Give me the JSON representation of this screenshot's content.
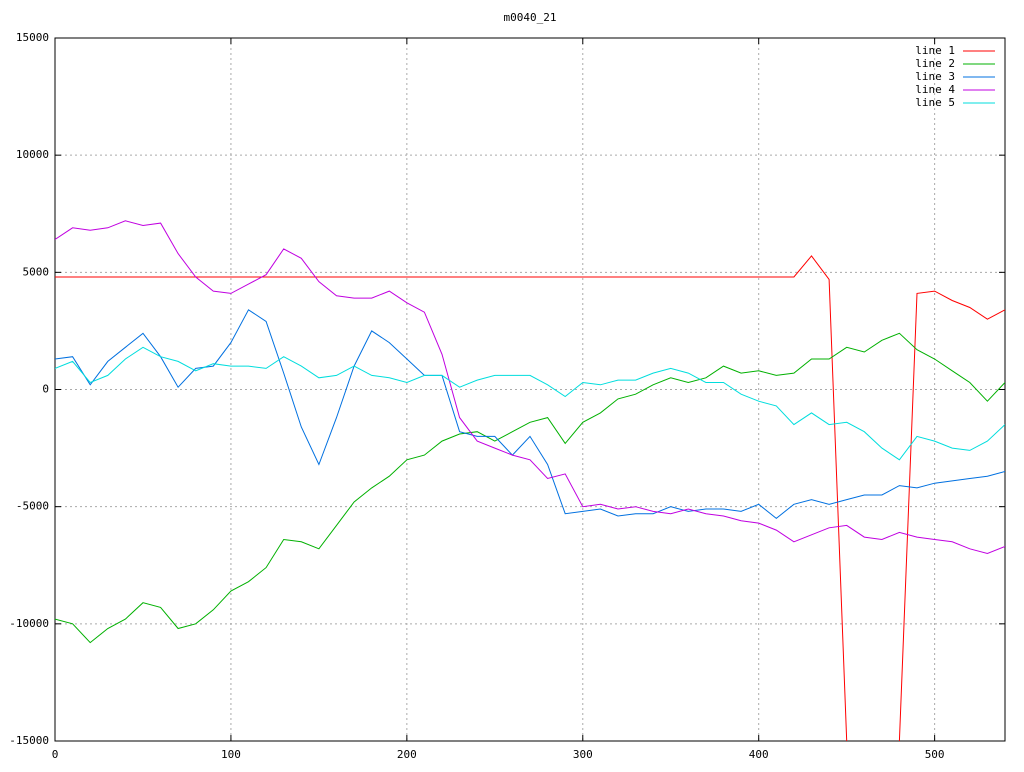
{
  "chart_data": {
    "type": "line",
    "title": "m0040_21",
    "x": [
      0,
      10,
      20,
      30,
      40,
      50,
      60,
      70,
      80,
      90,
      100,
      110,
      120,
      130,
      140,
      150,
      160,
      170,
      180,
      190,
      200,
      210,
      220,
      230,
      240,
      250,
      260,
      270,
      280,
      290,
      300,
      310,
      320,
      330,
      340,
      350,
      360,
      370,
      380,
      390,
      400,
      410,
      420,
      430,
      440,
      450,
      460,
      470,
      480,
      490,
      500,
      510,
      520,
      530,
      540
    ],
    "xlim": [
      0,
      540
    ],
    "xticks": [
      0,
      100,
      200,
      300,
      400,
      500
    ],
    "ylim": [
      -15000,
      15000
    ],
    "yticks": [
      -15000,
      -10000,
      -5000,
      0,
      5000,
      10000,
      15000
    ],
    "grid": true,
    "legend": "top-right",
    "series": [
      {
        "name": "line 1",
        "color": "#ff0000",
        "values": [
          4800,
          4800,
          4800,
          4800,
          4800,
          4800,
          4800,
          4800,
          4800,
          4800,
          4800,
          4800,
          4800,
          4800,
          4800,
          4800,
          4800,
          4800,
          4800,
          4800,
          4800,
          4800,
          4800,
          4800,
          4800,
          4800,
          4800,
          4800,
          4800,
          4800,
          4800,
          4800,
          4800,
          4800,
          4800,
          4800,
          4800,
          4800,
          4800,
          4800,
          4800,
          4800,
          4800,
          5700,
          4700,
          -15000,
          null,
          null,
          -15000,
          4100,
          4200,
          3800,
          3500,
          3000,
          3400
        ]
      },
      {
        "name": "line 2",
        "color": "#00b000",
        "values": [
          -9800,
          -10000,
          -10800,
          -10200,
          -9800,
          -9100,
          -9300,
          -10200,
          -10000,
          -9400,
          -8600,
          -8200,
          -7600,
          -6400,
          -6500,
          -6800,
          -5800,
          -4800,
          -4200,
          -3700,
          -3000,
          -2800,
          -2200,
          -1900,
          -1800,
          -2200,
          -1800,
          -1400,
          -1200,
          -2300,
          -1400,
          -1000,
          -400,
          -200,
          200,
          500,
          300,
          500,
          1000,
          700,
          800,
          600,
          700,
          1300,
          1300,
          1800,
          1600,
          2100,
          2400,
          1700,
          1300,
          800,
          300,
          -500,
          300
        ]
      },
      {
        "name": "line 3",
        "color": "#0070e0",
        "values": [
          1300,
          1400,
          200,
          1200,
          1800,
          2400,
          1400,
          100,
          900,
          1000,
          2000,
          3400,
          2900,
          700,
          -1600,
          -3200,
          -1200,
          1000,
          2500,
          2000,
          1300,
          600,
          600,
          -1800,
          -2000,
          -2000,
          -2800,
          -2000,
          -3200,
          -5300,
          -5200,
          -5100,
          -5400,
          -5300,
          -5300,
          -5000,
          -5200,
          -5100,
          -5100,
          -5200,
          -4900,
          -5500,
          -4900,
          -4700,
          -4900,
          -4700,
          -4500,
          -4500,
          -4100,
          -4200,
          -4000,
          -3900,
          -3800,
          -3700,
          -3500
        ]
      },
      {
        "name": "line 4",
        "color": "#c000e0",
        "values": [
          6400,
          6900,
          6800,
          6900,
          7200,
          7000,
          7100,
          5800,
          4800,
          4200,
          4100,
          4500,
          4900,
          6000,
          5600,
          4600,
          4000,
          3900,
          3900,
          4200,
          3700,
          3300,
          1500,
          -1200,
          -2200,
          -2500,
          -2800,
          -3000,
          -3800,
          -3600,
          -5000,
          -4900,
          -5100,
          -5000,
          -5200,
          -5300,
          -5100,
          -5300,
          -5400,
          -5600,
          -5700,
          -6000,
          -6500,
          -6200,
          -5900,
          -5800,
          -6300,
          -6400,
          -6100,
          -6300,
          -6400,
          -6500,
          -6800,
          -7000,
          -6700
        ]
      },
      {
        "name": "line 5",
        "color": "#00dddd",
        "values": [
          900,
          1200,
          300,
          600,
          1300,
          1800,
          1400,
          1200,
          800,
          1100,
          1000,
          1000,
          900,
          1400,
          1000,
          500,
          600,
          1000,
          600,
          500,
          300,
          600,
          600,
          100,
          400,
          600,
          600,
          600,
          200,
          -300,
          300,
          200,
          400,
          400,
          700,
          900,
          700,
          300,
          300,
          -200,
          -500,
          -700,
          -1500,
          -1000,
          -1500,
          -1400,
          -1800,
          -2500,
          -3000,
          -2000,
          -2200,
          -2500,
          -2600,
          -2200,
          -1500
        ]
      }
    ]
  }
}
